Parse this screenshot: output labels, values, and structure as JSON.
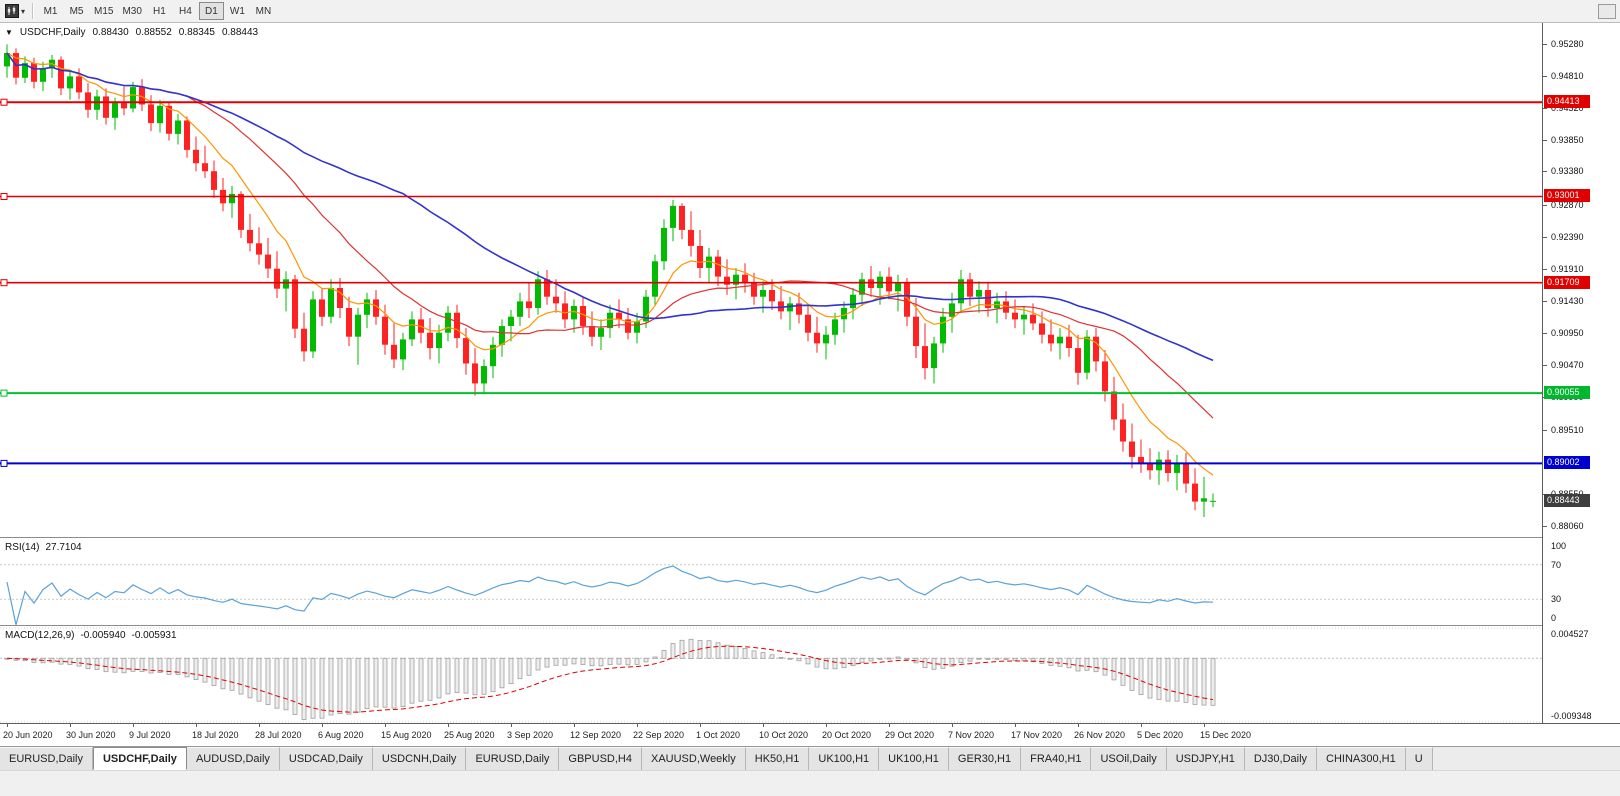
{
  "toolbar": {
    "timeframes": [
      "M1",
      "M5",
      "M15",
      "M30",
      "H1",
      "H4",
      "D1",
      "W1",
      "MN"
    ],
    "active_timeframe": "D1"
  },
  "chart_title": {
    "symbol": "USDCHF,Daily",
    "open": "0.88430",
    "high": "0.88552",
    "low": "0.88345",
    "close": "0.88443"
  },
  "price_axis": {
    "labels": [
      "0.95280",
      "0.94810",
      "0.94320",
      "0.93850",
      "0.93380",
      "0.92870",
      "0.92390",
      "0.91910",
      "0.91430",
      "0.90950",
      "0.90470",
      "0.89990",
      "0.89510",
      "0.88550",
      "0.88060"
    ],
    "tags": [
      {
        "label": "0.94413",
        "price": 0.94413,
        "color": "#e00000"
      },
      {
        "label": "0.93001",
        "price": 0.93001,
        "color": "#e00000"
      },
      {
        "label": "0.91709",
        "price": 0.91709,
        "color": "#e00000"
      },
      {
        "label": "0.90055",
        "price": 0.90055,
        "color": "#00b82e"
      },
      {
        "label": "0.89002",
        "price": 0.89002,
        "color": "#0000d0"
      },
      {
        "label": "0.88443",
        "price": 0.88443,
        "color": "#3e3e3e"
      }
    ]
  },
  "hlines": [
    {
      "price": 0.94413,
      "color": "#e00000",
      "width": 2
    },
    {
      "price": 0.93001,
      "color": "#e00000",
      "width": 1.6
    },
    {
      "price": 0.91709,
      "color": "#e00000",
      "width": 1.6
    },
    {
      "price": 0.90055,
      "color": "#00c02a",
      "width": 2
    },
    {
      "price": 0.89002,
      "color": "#0000d0",
      "width": 2
    }
  ],
  "indicators": {
    "rsi": {
      "name": "RSI(14)",
      "value": "27.7104",
      "period": 14,
      "color": "#59a3d9",
      "levels": [
        {
          "label": "100",
          "value": 100,
          "dotted": false
        },
        {
          "label": "70",
          "value": 70,
          "dotted": true
        },
        {
          "label": "30",
          "value": 30,
          "dotted": true
        },
        {
          "label": "0",
          "value": 0,
          "dotted": false
        }
      ]
    },
    "macd": {
      "name": "MACD(12,26,9)",
      "macd_value": "-0.005940",
      "signal_value": "-0.005931",
      "fast": 12,
      "slow": 26,
      "signal": 9,
      "max_label": "0.004527",
      "min_label": "-0.009348",
      "scale_max": 0.004527,
      "scale_min": -0.009348
    }
  },
  "chart_data": {
    "type": "candlestick",
    "title": "USDCHF,Daily",
    "price_range": [
      0.879,
      0.956
    ],
    "bull_color": "#00bb00",
    "bear_color": "#ff2222",
    "x_label_step": 7,
    "x_labels": [
      "20 Jun 2020",
      "30 Jun 2020",
      "9 Jul 2020",
      "18 Jul 2020",
      "28 Jul 2020",
      "6 Aug 2020",
      "15 Aug 2020",
      "25 Aug 2020",
      "3 Sep 2020",
      "12 Sep 2020",
      "22 Sep 2020",
      "1 Oct 2020",
      "10 Oct 2020",
      "20 Oct 2020",
      "29 Oct 2020",
      "7 Nov 2020",
      "17 Nov 2020",
      "26 Nov 2020",
      "5 Dec 2020",
      "15 Dec 2020"
    ],
    "ma": [
      {
        "name": "ma-fast-line",
        "type": "ema",
        "window": 9,
        "color": "#ff9500",
        "w": 1.2
      },
      {
        "name": "ma-mid-line",
        "type": "sma",
        "window": 21,
        "color": "#e03131",
        "w": 1.2
      },
      {
        "name": "ma-slow-line",
        "type": "sma",
        "window": 45,
        "color": "#3333cc",
        "w": 1.6
      }
    ],
    "candles": [
      [
        0.9495,
        0.9528,
        0.9478,
        0.9515
      ],
      [
        0.9515,
        0.9522,
        0.9468,
        0.9478
      ],
      [
        0.9478,
        0.951,
        0.947,
        0.95
      ],
      [
        0.95,
        0.9508,
        0.9462,
        0.9472
      ],
      [
        0.9472,
        0.9502,
        0.9458,
        0.9492
      ],
      [
        0.9492,
        0.9512,
        0.9478,
        0.9505
      ],
      [
        0.9505,
        0.951,
        0.9452,
        0.9462
      ],
      [
        0.9462,
        0.949,
        0.9445,
        0.948
      ],
      [
        0.948,
        0.9492,
        0.9446,
        0.9456
      ],
      [
        0.9456,
        0.947,
        0.9418,
        0.943
      ],
      [
        0.943,
        0.946,
        0.9415,
        0.945
      ],
      [
        0.945,
        0.9462,
        0.9408,
        0.9418
      ],
      [
        0.9418,
        0.9448,
        0.94,
        0.944
      ],
      [
        0.944,
        0.9465,
        0.9422,
        0.9432
      ],
      [
        0.9432,
        0.9472,
        0.9426,
        0.9464
      ],
      [
        0.9464,
        0.9476,
        0.9428,
        0.9438
      ],
      [
        0.9438,
        0.9452,
        0.9398,
        0.941
      ],
      [
        0.941,
        0.9445,
        0.9396,
        0.9436
      ],
      [
        0.9436,
        0.9442,
        0.9384,
        0.9394
      ],
      [
        0.9394,
        0.9424,
        0.9378,
        0.9414
      ],
      [
        0.9414,
        0.942,
        0.9358,
        0.937
      ],
      [
        0.937,
        0.939,
        0.9338,
        0.935
      ],
      [
        0.935,
        0.9376,
        0.9328,
        0.9338
      ],
      [
        0.9338,
        0.9354,
        0.9298,
        0.931
      ],
      [
        0.931,
        0.9328,
        0.9278,
        0.929
      ],
      [
        0.929,
        0.9316,
        0.9268,
        0.9304
      ],
      [
        0.9304,
        0.9308,
        0.9238,
        0.925
      ],
      [
        0.925,
        0.9274,
        0.9218,
        0.923
      ],
      [
        0.923,
        0.9254,
        0.9198,
        0.9213
      ],
      [
        0.9213,
        0.9238,
        0.9178,
        0.9192
      ],
      [
        0.9192,
        0.9218,
        0.9148,
        0.9162
      ],
      [
        0.9162,
        0.9188,
        0.9128,
        0.9176
      ],
      [
        0.9176,
        0.9183,
        0.9088,
        0.9102
      ],
      [
        0.9102,
        0.9126,
        0.9053,
        0.9068
      ],
      [
        0.9068,
        0.9158,
        0.9058,
        0.9146
      ],
      [
        0.9146,
        0.9163,
        0.9106,
        0.912
      ],
      [
        0.912,
        0.9176,
        0.911,
        0.9163
      ],
      [
        0.9163,
        0.9178,
        0.9118,
        0.9133
      ],
      [
        0.9133,
        0.915,
        0.9076,
        0.909
      ],
      [
        0.909,
        0.9133,
        0.9048,
        0.9123
      ],
      [
        0.9123,
        0.9156,
        0.9103,
        0.9146
      ],
      [
        0.9146,
        0.916,
        0.9108,
        0.912
      ],
      [
        0.912,
        0.9138,
        0.9063,
        0.9078
      ],
      [
        0.9078,
        0.911,
        0.9043,
        0.9056
      ],
      [
        0.9056,
        0.9096,
        0.904,
        0.9086
      ],
      [
        0.9086,
        0.9128,
        0.9076,
        0.9116
      ],
      [
        0.9116,
        0.9133,
        0.908,
        0.9096
      ],
      [
        0.9096,
        0.9118,
        0.9056,
        0.9073
      ],
      [
        0.9073,
        0.9108,
        0.905,
        0.9096
      ],
      [
        0.9096,
        0.9136,
        0.9083,
        0.9126
      ],
      [
        0.9126,
        0.9138,
        0.9073,
        0.9088
      ],
      [
        0.9088,
        0.9103,
        0.9033,
        0.905
      ],
      [
        0.905,
        0.9073,
        0.9002,
        0.902
      ],
      [
        0.902,
        0.9056,
        0.9006,
        0.9046
      ],
      [
        0.9046,
        0.909,
        0.9028,
        0.9078
      ],
      [
        0.9078,
        0.9116,
        0.906,
        0.9106
      ],
      [
        0.9106,
        0.913,
        0.9083,
        0.912
      ],
      [
        0.912,
        0.9156,
        0.9106,
        0.9143
      ],
      [
        0.9143,
        0.917,
        0.9118,
        0.9133
      ],
      [
        0.9133,
        0.9188,
        0.9123,
        0.9176
      ],
      [
        0.9176,
        0.919,
        0.9138,
        0.915
      ],
      [
        0.915,
        0.9176,
        0.9126,
        0.914
      ],
      [
        0.914,
        0.9158,
        0.9103,
        0.9116
      ],
      [
        0.9116,
        0.9146,
        0.9096,
        0.9136
      ],
      [
        0.9136,
        0.915,
        0.9093,
        0.9106
      ],
      [
        0.9106,
        0.9128,
        0.9076,
        0.909
      ],
      [
        0.909,
        0.9116,
        0.907,
        0.9103
      ],
      [
        0.9103,
        0.9138,
        0.9088,
        0.9126
      ],
      [
        0.9126,
        0.9146,
        0.9103,
        0.9116
      ],
      [
        0.9116,
        0.9133,
        0.9086,
        0.9096
      ],
      [
        0.9096,
        0.9126,
        0.908,
        0.9113
      ],
      [
        0.9113,
        0.916,
        0.9103,
        0.915
      ],
      [
        0.915,
        0.9213,
        0.9138,
        0.9203
      ],
      [
        0.9203,
        0.9266,
        0.919,
        0.9253
      ],
      [
        0.9253,
        0.9295,
        0.9233,
        0.9286
      ],
      [
        0.9286,
        0.929,
        0.9236,
        0.925
      ],
      [
        0.925,
        0.9278,
        0.921,
        0.9226
      ],
      [
        0.9226,
        0.925,
        0.9178,
        0.9193
      ],
      [
        0.9193,
        0.9223,
        0.917,
        0.921
      ],
      [
        0.921,
        0.922,
        0.9166,
        0.918
      ],
      [
        0.918,
        0.9206,
        0.9153,
        0.9168
      ],
      [
        0.9168,
        0.9193,
        0.9146,
        0.9183
      ],
      [
        0.9183,
        0.92,
        0.9156,
        0.917
      ],
      [
        0.917,
        0.9186,
        0.9138,
        0.915
      ],
      [
        0.915,
        0.9173,
        0.9126,
        0.916
      ],
      [
        0.916,
        0.9176,
        0.913,
        0.9143
      ],
      [
        0.9143,
        0.9166,
        0.9116,
        0.9128
      ],
      [
        0.9128,
        0.915,
        0.91,
        0.914
      ],
      [
        0.914,
        0.9156,
        0.911,
        0.9123
      ],
      [
        0.9123,
        0.9138,
        0.9083,
        0.9096
      ],
      [
        0.9096,
        0.912,
        0.9066,
        0.908
      ],
      [
        0.908,
        0.9106,
        0.9056,
        0.9093
      ],
      [
        0.9093,
        0.9126,
        0.9078,
        0.9116
      ],
      [
        0.9116,
        0.9143,
        0.9096,
        0.9133
      ],
      [
        0.9133,
        0.9163,
        0.9116,
        0.9153
      ],
      [
        0.9153,
        0.9186,
        0.9136,
        0.9176
      ],
      [
        0.9176,
        0.9196,
        0.915,
        0.9163
      ],
      [
        0.9163,
        0.9188,
        0.9138,
        0.918
      ],
      [
        0.918,
        0.9194,
        0.9146,
        0.9158
      ],
      [
        0.9158,
        0.9183,
        0.9128,
        0.917
      ],
      [
        0.917,
        0.9178,
        0.9106,
        0.912
      ],
      [
        0.912,
        0.9148,
        0.9058,
        0.9076
      ],
      [
        0.9076,
        0.911,
        0.9026,
        0.9043
      ],
      [
        0.9043,
        0.909,
        0.902,
        0.908
      ],
      [
        0.908,
        0.9133,
        0.9066,
        0.912
      ],
      [
        0.912,
        0.9156,
        0.9096,
        0.914
      ],
      [
        0.914,
        0.919,
        0.9126,
        0.9176
      ],
      [
        0.9176,
        0.9186,
        0.9136,
        0.915
      ],
      [
        0.915,
        0.9173,
        0.9126,
        0.916
      ],
      [
        0.916,
        0.917,
        0.912,
        0.9133
      ],
      [
        0.9133,
        0.9156,
        0.911,
        0.9143
      ],
      [
        0.9143,
        0.9158,
        0.9116,
        0.9126
      ],
      [
        0.9126,
        0.9146,
        0.9103,
        0.9116
      ],
      [
        0.9116,
        0.9136,
        0.9093,
        0.9123
      ],
      [
        0.9123,
        0.914,
        0.91,
        0.911
      ],
      [
        0.911,
        0.9128,
        0.908,
        0.9093
      ],
      [
        0.9093,
        0.9116,
        0.9068,
        0.908
      ],
      [
        0.908,
        0.9103,
        0.9056,
        0.909
      ],
      [
        0.909,
        0.9108,
        0.906,
        0.9073
      ],
      [
        0.9073,
        0.9093,
        0.9018,
        0.9036
      ],
      [
        0.9036,
        0.91,
        0.9026,
        0.909
      ],
      [
        0.909,
        0.9103,
        0.9038,
        0.9053
      ],
      [
        0.9053,
        0.907,
        0.8993,
        0.9008
      ],
      [
        0.9008,
        0.903,
        0.895,
        0.8966
      ],
      [
        0.8966,
        0.899,
        0.8918,
        0.8933
      ],
      [
        0.8933,
        0.896,
        0.8893,
        0.891
      ],
      [
        0.891,
        0.8936,
        0.8886,
        0.89
      ],
      [
        0.89,
        0.8923,
        0.8876,
        0.889
      ],
      [
        0.889,
        0.8918,
        0.8868,
        0.8906
      ],
      [
        0.8906,
        0.892,
        0.8873,
        0.8886
      ],
      [
        0.8886,
        0.8913,
        0.886,
        0.89
      ],
      [
        0.89,
        0.8916,
        0.8856,
        0.887
      ],
      [
        0.887,
        0.8893,
        0.883,
        0.8843
      ],
      [
        0.8843,
        0.888,
        0.882,
        0.8848
      ],
      [
        0.8843,
        0.88552,
        0.88345,
        0.88443
      ]
    ]
  },
  "tabs": [
    "EURUSD,Daily",
    "USDCHF,Daily",
    "AUDUSD,Daily",
    "USDCAD,Daily",
    "USDCNH,Daily",
    "EURUSD,Daily",
    "GBPUSD,H4",
    "XAUUSD,Weekly",
    "HK50,H1",
    "UK100,H1",
    "UK100,H1",
    "GER30,H1",
    "FRA40,H1",
    "USOil,Daily",
    "USDJPY,H1",
    "DJ30,Daily",
    "CHINA300,H1",
    "U"
  ],
  "active_tab_index": 1
}
